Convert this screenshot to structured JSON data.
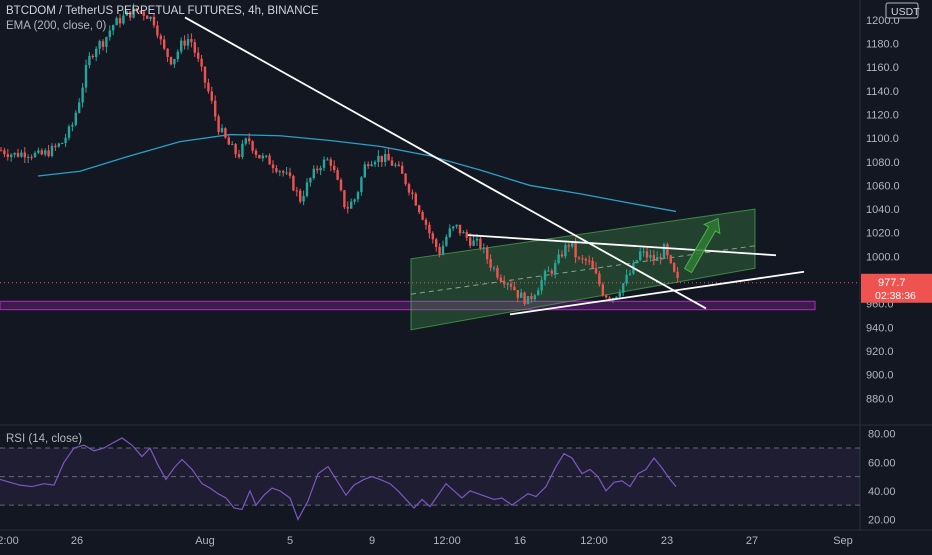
{
  "chart_data": [
    {
      "type": "candlestick",
      "title": "BTCDOM / TetherUS PERPETUAL FUTURES, 4h, BINANCE",
      "overlay_label": "EMA (200, close, 0)",
      "currency_label": "USDT",
      "ylim": [
        860,
        1210
      ],
      "y_ticks": [
        "1200.0",
        "1180.0",
        "1160.0",
        "1140.0",
        "1120.0",
        "1100.0",
        "1080.0",
        "1060.0",
        "1040.0",
        "1020.0",
        "1000.0",
        "980.0",
        "960.0",
        "940.0",
        "920.0",
        "900.0",
        "880.0"
      ],
      "last_price": "977.7",
      "countdown": "02:38:36",
      "x_ticks": [
        "2:00",
        "26",
        "Aug",
        "5",
        "9",
        "12:00",
        "16",
        "12:00",
        "23",
        "27",
        "Sep"
      ],
      "colors": {
        "up": "#26a69a",
        "down": "#ef5350",
        "ema": "#2a9fc9",
        "trend": "#ffffff",
        "channel": "#4caf50",
        "zone": "#9c27b0",
        "background": "#131722"
      },
      "close_path": [
        [
          0,
          1090
        ],
        [
          14,
          1086
        ],
        [
          26,
          1088
        ],
        [
          40,
          1085
        ],
        [
          52,
          1090
        ],
        [
          62,
          1096
        ],
        [
          72,
          1110
        ],
        [
          80,
          1135
        ],
        [
          88,
          1165
        ],
        [
          96,
          1178
        ],
        [
          104,
          1182
        ],
        [
          112,
          1195
        ],
        [
          120,
          1200
        ],
        [
          128,
          1205
        ],
        [
          138,
          1208
        ],
        [
          146,
          1205
        ],
        [
          155,
          1198
        ],
        [
          163,
          1175
        ],
        [
          172,
          1165
        ],
        [
          182,
          1180
        ],
        [
          190,
          1185
        ],
        [
          200,
          1160
        ],
        [
          210,
          1135
        ],
        [
          218,
          1110
        ],
        [
          228,
          1095
        ],
        [
          238,
          1085
        ],
        [
          248,
          1100
        ],
        [
          258,
          1085
        ],
        [
          270,
          1080
        ],
        [
          282,
          1072
        ],
        [
          292,
          1062
        ],
        [
          300,
          1048
        ],
        [
          310,
          1065
        ],
        [
          320,
          1078
        ],
        [
          330,
          1082
        ],
        [
          340,
          1055
        ],
        [
          346,
          1040
        ],
        [
          356,
          1050
        ],
        [
          366,
          1080
        ],
        [
          376,
          1084
        ],
        [
          386,
          1082
        ],
        [
          396,
          1076
        ],
        [
          404,
          1066
        ],
        [
          414,
          1050
        ],
        [
          424,
          1032
        ],
        [
          432,
          1014
        ],
        [
          440,
          1003
        ],
        [
          448,
          1020
        ],
        [
          456,
          1025
        ],
        [
          464,
          1018
        ],
        [
          472,
          1012
        ],
        [
          480,
          1010
        ],
        [
          490,
          994
        ],
        [
          500,
          983
        ],
        [
          510,
          978
        ],
        [
          518,
          968
        ],
        [
          528,
          962
        ],
        [
          536,
          972
        ],
        [
          546,
          985
        ],
        [
          554,
          990
        ],
        [
          562,
          1003
        ],
        [
          570,
          1012
        ],
        [
          578,
          996
        ],
        [
          588,
          996
        ],
        [
          596,
          983
        ],
        [
          604,
          968
        ],
        [
          614,
          966
        ],
        [
          624,
          978
        ],
        [
          632,
          988
        ],
        [
          640,
          1003
        ],
        [
          648,
          1000
        ],
        [
          656,
          996
        ],
        [
          664,
          1006
        ],
        [
          672,
          988
        ],
        [
          678,
          978
        ]
      ],
      "ema_path": [
        [
          38,
          1068
        ],
        [
          80,
          1072
        ],
        [
          130,
          1085
        ],
        [
          180,
          1097
        ],
        [
          230,
          1103
        ],
        [
          280,
          1102
        ],
        [
          330,
          1098
        ],
        [
          380,
          1093
        ],
        [
          430,
          1085
        ],
        [
          480,
          1073
        ],
        [
          530,
          1060
        ],
        [
          580,
          1053
        ],
        [
          630,
          1045
        ],
        [
          676,
          1038
        ]
      ],
      "trend_lines": [
        {
          "from": [
            185,
            1202
          ],
          "to": [
            706,
            956
          ]
        },
        {
          "from": [
            468,
            1018
          ],
          "to": [
            776,
            1001
          ]
        },
        {
          "from": [
            510,
            951
          ],
          "to": [
            804,
            987
          ]
        }
      ],
      "channel": {
        "lower_from": [
          411,
          938
        ],
        "lower_to": [
          755,
          990
        ],
        "upper_from": [
          411,
          998
        ],
        "upper_to": [
          755,
          1040
        ],
        "mid_from": [
          411,
          968
        ],
        "mid_to": [
          755,
          1009
        ]
      },
      "zone": {
        "x_from": 0,
        "x_to": 815,
        "y_low": 955,
        "y_high": 962
      },
      "arrow": {
        "from": [
          688,
          988
        ],
        "to": [
          718,
          1032
        ]
      },
      "last_price_level": 977.7
    },
    {
      "type": "line",
      "title": "RSI (14, close)",
      "ylim": [
        14,
        84
      ],
      "y_ticks": [
        "80.00",
        "60.00",
        "40.00",
        "20.00"
      ],
      "bands": {
        "upper": 70,
        "middle": 50,
        "lower": 30
      },
      "colors": {
        "line": "#7e57c2",
        "band_fill": "#7e57c2"
      },
      "series_path": [
        [
          0,
          48
        ],
        [
          10,
          46
        ],
        [
          20,
          44
        ],
        [
          32,
          43
        ],
        [
          44,
          45
        ],
        [
          54,
          44
        ],
        [
          64,
          60
        ],
        [
          74,
          70
        ],
        [
          84,
          72
        ],
        [
          94,
          68
        ],
        [
          104,
          70
        ],
        [
          114,
          74
        ],
        [
          122,
          77
        ],
        [
          132,
          72
        ],
        [
          142,
          64
        ],
        [
          150,
          70
        ],
        [
          158,
          58
        ],
        [
          166,
          48
        ],
        [
          174,
          56
        ],
        [
          182,
          62
        ],
        [
          192,
          55
        ],
        [
          202,
          45
        ],
        [
          210,
          42
        ],
        [
          218,
          38
        ],
        [
          226,
          35
        ],
        [
          234,
          28
        ],
        [
          242,
          27
        ],
        [
          250,
          40
        ],
        [
          256,
          30
        ],
        [
          264,
          37
        ],
        [
          272,
          42
        ],
        [
          280,
          40
        ],
        [
          290,
          35
        ],
        [
          298,
          20
        ],
        [
          308,
          33
        ],
        [
          318,
          52
        ],
        [
          328,
          57
        ],
        [
          338,
          46
        ],
        [
          346,
          37
        ],
        [
          354,
          44
        ],
        [
          364,
          48
        ],
        [
          372,
          50
        ],
        [
          380,
          48
        ],
        [
          390,
          45
        ],
        [
          398,
          40
        ],
        [
          406,
          34
        ],
        [
          414,
          28
        ],
        [
          422,
          34
        ],
        [
          430,
          29
        ],
        [
          438,
          37
        ],
        [
          446,
          45
        ],
        [
          454,
          40
        ],
        [
          462,
          35
        ],
        [
          470,
          40
        ],
        [
          478,
          38
        ],
        [
          486,
          36
        ],
        [
          494,
          34
        ],
        [
          502,
          35
        ],
        [
          512,
          30
        ],
        [
          520,
          34
        ],
        [
          528,
          38
        ],
        [
          536,
          36
        ],
        [
          546,
          43
        ],
        [
          556,
          57
        ],
        [
          564,
          66
        ],
        [
          572,
          63
        ],
        [
          582,
          52
        ],
        [
          590,
          55
        ],
        [
          598,
          50
        ],
        [
          606,
          40
        ],
        [
          614,
          46
        ],
        [
          622,
          47
        ],
        [
          630,
          43
        ],
        [
          638,
          52
        ],
        [
          646,
          55
        ],
        [
          654,
          63
        ],
        [
          662,
          56
        ],
        [
          670,
          48
        ],
        [
          676,
          43
        ]
      ]
    }
  ]
}
